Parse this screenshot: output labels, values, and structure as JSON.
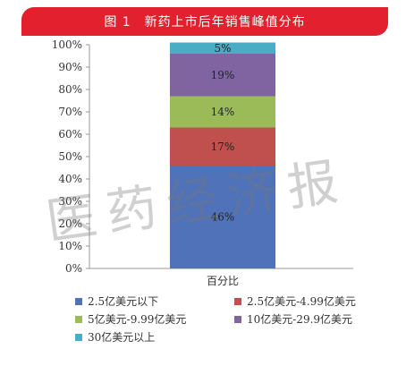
{
  "header": {
    "title": "图 1　新药上市后年销售峰值分布"
  },
  "watermark": "医药经济报",
  "chart_data": {
    "type": "bar",
    "stacked": true,
    "categories": [
      "百分比"
    ],
    "ylim": [
      0,
      100
    ],
    "yticks": [
      "0%",
      "10%",
      "20%",
      "30%",
      "40%",
      "50%",
      "60%",
      "70%",
      "80%",
      "90%",
      "100%"
    ],
    "series": [
      {
        "name": "2.5亿美元以下",
        "values": [
          46
        ],
        "label": "46%",
        "color": "#4f72b8"
      },
      {
        "name": "2.5亿美元-4.99亿美元",
        "values": [
          17
        ],
        "label": "17%",
        "color": "#c0504d"
      },
      {
        "name": "5亿美元-9.99亿美元",
        "values": [
          14
        ],
        "label": "14%",
        "color": "#9bbb59"
      },
      {
        "name": "10亿美元-29.9亿美元",
        "values": [
          19
        ],
        "label": "19%",
        "color": "#8064a2"
      },
      {
        "name": "30亿美元以上",
        "values": [
          5
        ],
        "label": "5%",
        "color": "#4bacc6"
      }
    ],
    "legend_position": "bottom",
    "grid": false
  }
}
